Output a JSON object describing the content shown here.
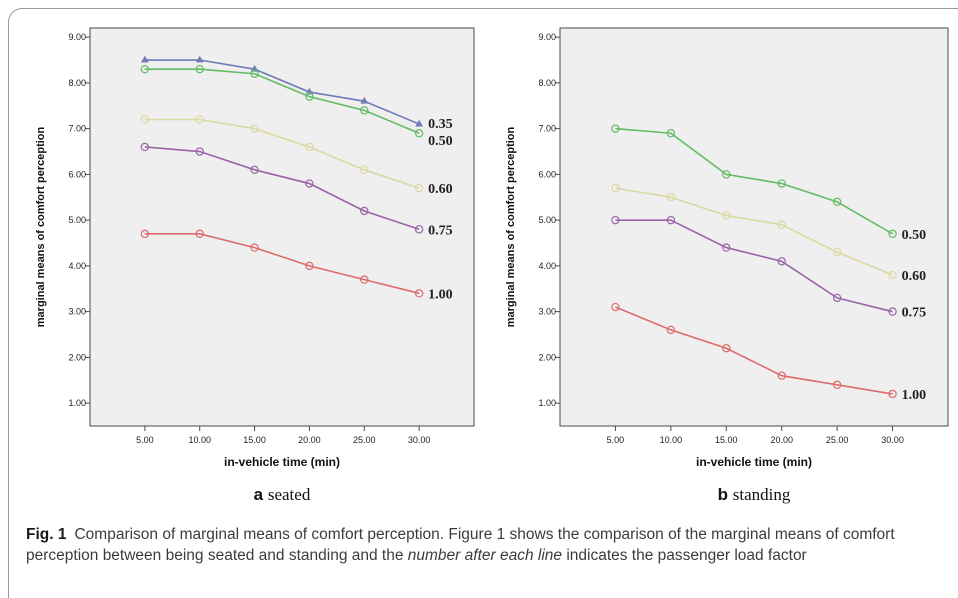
{
  "chart_data": [
    {
      "type": "line",
      "panel_letter": "a",
      "panel_title": "seated",
      "xlabel": "in-vehicle time (min)",
      "ylabel": "marginal means of comfort perception",
      "x": [
        5,
        10,
        15,
        20,
        25,
        30
      ],
      "x_tick_labels": [
        "5.00",
        "10.00",
        "15.00",
        "20.00",
        "25.00",
        "30.00"
      ],
      "xlim": [
        0,
        35
      ],
      "ylim": [
        0.5,
        9.2
      ],
      "y_ticks": [
        1,
        2,
        3,
        4,
        5,
        6,
        7,
        8,
        9
      ],
      "y_tick_labels": [
        "1.00",
        "2.00",
        "3.00",
        "4.00",
        "5.00",
        "6.00",
        "7.00",
        "8.00",
        "9.00"
      ],
      "grid": false,
      "series": [
        {
          "name": "0.35",
          "color": "#6f7ab8",
          "marker": "triangle",
          "values": [
            8.5,
            8.5,
            8.3,
            7.8,
            7.6,
            7.1
          ]
        },
        {
          "name": "0.50",
          "color": "#62bb62",
          "marker": "circle",
          "values": [
            8.3,
            8.3,
            8.2,
            7.7,
            7.4,
            6.9
          ]
        },
        {
          "name": "0.60",
          "color": "#dcd8a2",
          "marker": "circle",
          "values": [
            7.2,
            7.2,
            7.0,
            6.6,
            6.1,
            5.7
          ]
        },
        {
          "name": "0.75",
          "color": "#9a64a6",
          "marker": "circle",
          "values": [
            6.6,
            6.5,
            6.1,
            5.8,
            5.2,
            4.8
          ]
        },
        {
          "name": "1.00",
          "color": "#de6a6a",
          "marker": "circle",
          "values": [
            4.7,
            4.7,
            4.4,
            4.0,
            3.7,
            3.4
          ]
        }
      ]
    },
    {
      "type": "line",
      "panel_letter": "b",
      "panel_title": "standing",
      "xlabel": "in-vehicle time (min)",
      "ylabel": "marginal means of comfort perception",
      "x": [
        5,
        10,
        15,
        20,
        25,
        30
      ],
      "x_tick_labels": [
        "5.00",
        "10.00",
        "15.00",
        "20.00",
        "25.00",
        "30.00"
      ],
      "xlim": [
        0,
        35
      ],
      "ylim": [
        0.5,
        9.2
      ],
      "y_ticks": [
        1,
        2,
        3,
        4,
        5,
        6,
        7,
        8,
        9
      ],
      "y_tick_labels": [
        "1.00",
        "2.00",
        "3.00",
        "4.00",
        "5.00",
        "6.00",
        "7.00",
        "8.00",
        "9.00"
      ],
      "grid": false,
      "series": [
        {
          "name": "0.50",
          "color": "#62bb62",
          "marker": "circle",
          "values": [
            7.0,
            6.9,
            6.0,
            5.8,
            5.4,
            4.7
          ]
        },
        {
          "name": "0.60",
          "color": "#dcd8a2",
          "marker": "circle",
          "values": [
            5.7,
            5.5,
            5.1,
            4.9,
            4.3,
            3.8
          ]
        },
        {
          "name": "0.75",
          "color": "#9a64a6",
          "marker": "circle",
          "values": [
            5.0,
            5.0,
            4.4,
            4.1,
            3.3,
            3.0
          ]
        },
        {
          "name": "1.00",
          "color": "#de6a6a",
          "marker": "circle",
          "values": [
            3.1,
            2.6,
            2.2,
            1.6,
            1.4,
            1.2
          ]
        }
      ]
    }
  ],
  "caption": {
    "label": "Fig. 1",
    "text_part1": "Comparison of marginal means of comfort perception. Figure 1 shows the comparison of the marginal means of comfort perception between being seated and standing and the ",
    "text_emphasis": "number after each line",
    "text_part2": " indicates the passenger load factor"
  },
  "colors": {
    "plot_background": "#efefef",
    "axis": "#4a4a4a"
  }
}
